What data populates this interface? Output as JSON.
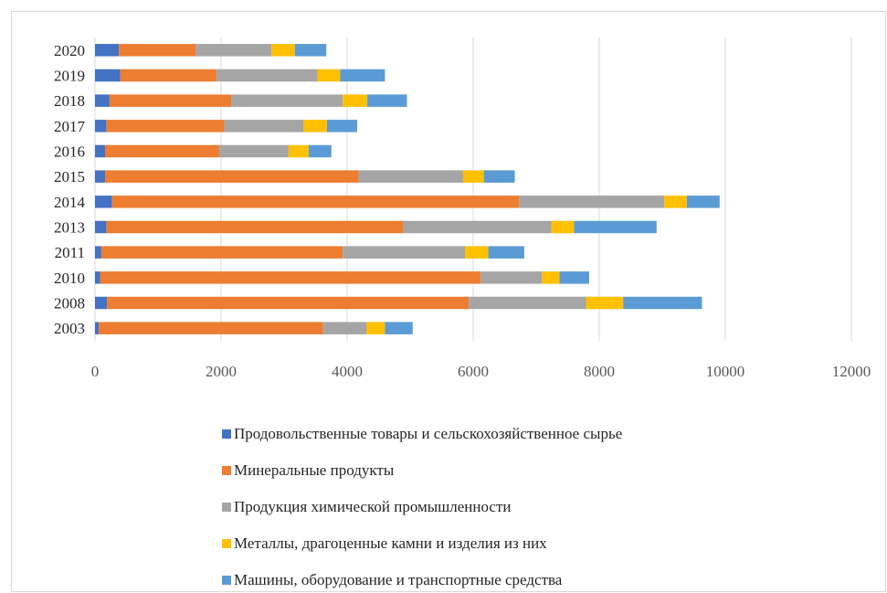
{
  "chart_data": {
    "type": "bar",
    "orientation": "horizontal",
    "stacked": true,
    "categories": [
      "2020",
      "2019",
      "2018",
      "2017",
      "2016",
      "2015",
      "2014",
      "2013",
      "2011",
      "2010",
      "2008",
      "2003"
    ],
    "series": [
      {
        "name": "Продовольственные товары и сельскохозяйственное сырье",
        "color": "#4472C4",
        "values": [
          380,
          400,
          230,
          180,
          160,
          160,
          270,
          180,
          100,
          80,
          190,
          60
        ]
      },
      {
        "name": "Минеральные продукты",
        "color": "#ED7D31",
        "values": [
          1220,
          1530,
          1930,
          1870,
          1810,
          4020,
          6460,
          4710,
          3830,
          6040,
          5740,
          3560
        ]
      },
      {
        "name": "Продукция химической промышленности",
        "color": "#A5A5A5",
        "values": [
          1200,
          1600,
          1770,
          1260,
          1100,
          1660,
          2300,
          2350,
          1940,
          970,
          1860,
          690
        ]
      },
      {
        "name": "Металлы, драгоценные камни и изделия из них",
        "color": "#FFC000",
        "values": [
          370,
          360,
          390,
          370,
          320,
          330,
          360,
          360,
          370,
          280,
          590,
          290
        ]
      },
      {
        "name": "Машины, оборудование и транспортные средства",
        "color": "#5B9BD5",
        "values": [
          500,
          710,
          630,
          480,
          360,
          490,
          520,
          1310,
          570,
          470,
          1250,
          440
        ]
      }
    ],
    "x_ticks": [
      "0",
      "2000",
      "4000",
      "6000",
      "8000",
      "10000",
      "12000"
    ],
    "xlim": [
      0,
      12000
    ],
    "grid": "vertical",
    "legend_position": "bottom"
  }
}
